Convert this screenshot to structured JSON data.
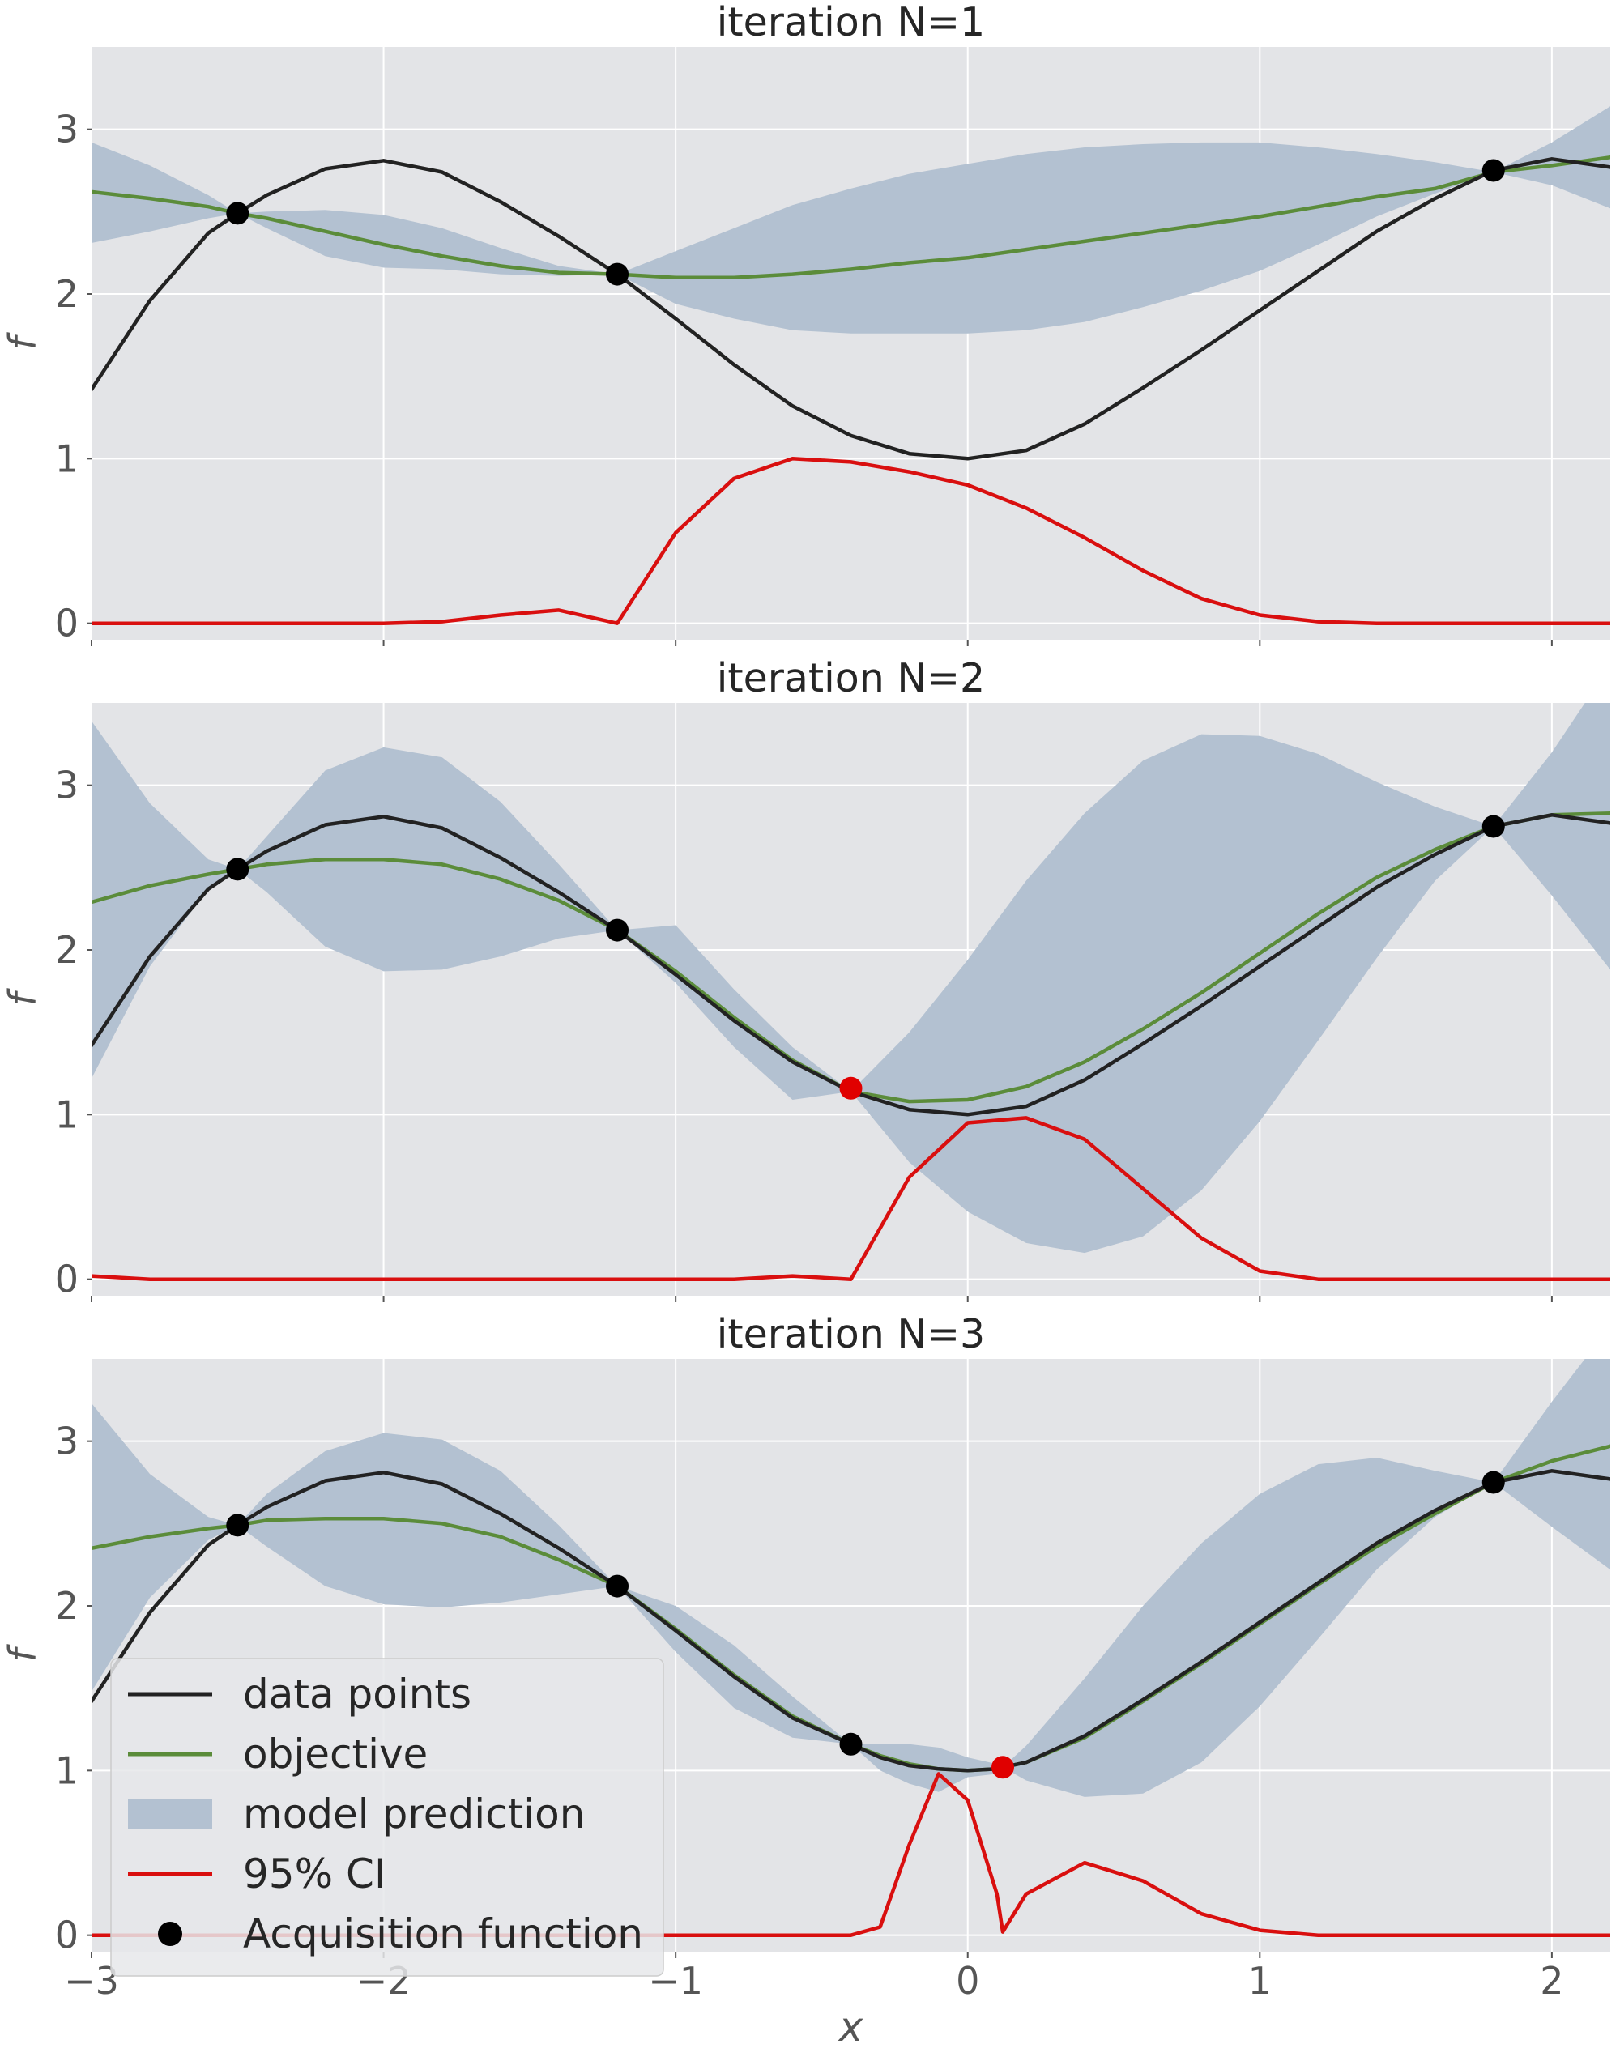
{
  "chart_data": [
    {
      "type": "line",
      "title": "iteration N=1",
      "xlabel": "",
      "ylabel": "f",
      "xlim": [
        -3,
        2.2
      ],
      "ylim": [
        -0.1,
        3.5
      ],
      "x_ticks": [
        -3,
        -2,
        -1,
        0,
        1,
        2
      ],
      "y_ticks": [
        0,
        1,
        2,
        3
      ],
      "grid": true,
      "background": "#e3e4e7",
      "colors": {
        "data_points": "#222222",
        "objective": "#5b8c3a",
        "model_prediction": "#b3c1d1",
        "ci": "#d90f0f",
        "marker": "#000000",
        "new_marker": "#e00000"
      },
      "x": [
        -3.0,
        -2.8,
        -2.6,
        -2.5,
        -2.4,
        -2.2,
        -2.0,
        -1.8,
        -1.6,
        -1.4,
        -1.2,
        -1.0,
        -0.8,
        -0.6,
        -0.4,
        -0.2,
        0.0,
        0.2,
        0.4,
        0.6,
        0.8,
        1.0,
        1.2,
        1.4,
        1.6,
        1.8,
        2.0,
        2.2
      ],
      "series": [
        {
          "name": "data points",
          "values": [
            1.42,
            1.96,
            2.37,
            2.49,
            2.6,
            2.76,
            2.81,
            2.74,
            2.56,
            2.35,
            2.12,
            1.85,
            1.57,
            1.32,
            1.14,
            1.03,
            1.0,
            1.05,
            1.21,
            1.43,
            1.66,
            1.9,
            2.14,
            2.38,
            2.58,
            2.75,
            2.82,
            2.77
          ]
        },
        {
          "name": "objective",
          "values": [
            2.62,
            2.58,
            2.53,
            2.49,
            2.46,
            2.38,
            2.3,
            2.23,
            2.17,
            2.13,
            2.12,
            2.1,
            2.1,
            2.12,
            2.15,
            2.19,
            2.22,
            2.27,
            2.32,
            2.37,
            2.42,
            2.47,
            2.53,
            2.59,
            2.64,
            2.74,
            2.78,
            2.83
          ]
        },
        {
          "name": "model prediction",
          "type": "band",
          "lower": [
            2.31,
            2.38,
            2.46,
            2.49,
            2.4,
            2.23,
            2.16,
            2.15,
            2.12,
            2.11,
            2.12,
            1.94,
            1.85,
            1.78,
            1.76,
            1.76,
            1.76,
            1.78,
            1.83,
            1.92,
            2.02,
            2.14,
            2.3,
            2.47,
            2.61,
            2.74,
            2.66,
            2.52
          ],
          "upper": [
            2.92,
            2.78,
            2.6,
            2.49,
            2.5,
            2.51,
            2.48,
            2.4,
            2.28,
            2.17,
            2.12,
            2.26,
            2.4,
            2.54,
            2.64,
            2.73,
            2.79,
            2.85,
            2.89,
            2.91,
            2.92,
            2.92,
            2.89,
            2.85,
            2.8,
            2.74,
            2.92,
            3.14
          ]
        },
        {
          "name": "95% CI",
          "values": [
            0.0,
            0.0,
            0.0,
            0.0,
            0.0,
            0.0,
            0.0,
            0.01,
            0.05,
            0.08,
            0.0,
            0.55,
            0.88,
            1.0,
            0.98,
            0.92,
            0.84,
            0.7,
            0.52,
            0.32,
            0.15,
            0.05,
            0.01,
            0.0,
            0.0,
            0.0,
            0.0,
            0.0
          ]
        }
      ],
      "observed_points": [
        {
          "x": -2.5,
          "y": 2.49
        },
        {
          "x": -1.2,
          "y": 2.12
        },
        {
          "x": 1.8,
          "y": 2.75
        }
      ],
      "new_points": []
    },
    {
      "type": "line",
      "title": "iteration N=2",
      "xlabel": "",
      "ylabel": "f",
      "xlim": [
        -3,
        2.2
      ],
      "ylim": [
        -0.1,
        3.5
      ],
      "x_ticks": [
        -3,
        -2,
        -1,
        0,
        1,
        2
      ],
      "y_ticks": [
        0,
        1,
        2,
        3
      ],
      "grid": true,
      "background": "#e3e4e7",
      "colors": {
        "data_points": "#222222",
        "objective": "#5b8c3a",
        "model_prediction": "#b3c1d1",
        "ci": "#d90f0f",
        "marker": "#000000",
        "new_marker": "#e00000"
      },
      "x": [
        -3.0,
        -2.8,
        -2.6,
        -2.5,
        -2.4,
        -2.2,
        -2.0,
        -1.8,
        -1.6,
        -1.4,
        -1.2,
        -1.0,
        -0.8,
        -0.6,
        -0.4,
        -0.2,
        0.0,
        0.2,
        0.4,
        0.6,
        0.8,
        1.0,
        1.2,
        1.4,
        1.6,
        1.8,
        2.0,
        2.2
      ],
      "series": [
        {
          "name": "data points",
          "values": [
            1.42,
            1.96,
            2.37,
            2.49,
            2.6,
            2.76,
            2.81,
            2.74,
            2.56,
            2.35,
            2.12,
            1.85,
            1.57,
            1.32,
            1.14,
            1.03,
            1.0,
            1.05,
            1.21,
            1.43,
            1.66,
            1.9,
            2.14,
            2.38,
            2.58,
            2.75,
            2.82,
            2.77
          ]
        },
        {
          "name": "objective",
          "values": [
            2.29,
            2.39,
            2.46,
            2.49,
            2.52,
            2.55,
            2.55,
            2.52,
            2.43,
            2.3,
            2.12,
            1.87,
            1.59,
            1.33,
            1.14,
            1.08,
            1.09,
            1.17,
            1.32,
            1.52,
            1.74,
            1.98,
            2.22,
            2.44,
            2.61,
            2.75,
            2.82,
            2.83
          ]
        },
        {
          "name": "model prediction",
          "type": "band",
          "lower": [
            1.22,
            1.9,
            2.37,
            2.49,
            2.35,
            2.02,
            1.87,
            1.88,
            1.96,
            2.07,
            2.12,
            1.8,
            1.41,
            1.09,
            1.14,
            0.71,
            0.41,
            0.22,
            0.16,
            0.26,
            0.54,
            0.96,
            1.45,
            1.95,
            2.42,
            2.75,
            2.33,
            1.88
          ],
          "upper": [
            3.39,
            2.89,
            2.55,
            2.49,
            2.69,
            3.09,
            3.23,
            3.17,
            2.9,
            2.52,
            2.12,
            2.15,
            1.76,
            1.41,
            1.14,
            1.5,
            1.94,
            2.42,
            2.83,
            3.15,
            3.31,
            3.3,
            3.19,
            3.02,
            2.87,
            2.75,
            3.2,
            3.73
          ]
        },
        {
          "name": "95% CI",
          "values": [
            0.02,
            0.0,
            0.0,
            0.0,
            0.0,
            0.0,
            0.0,
            0.0,
            0.0,
            0.0,
            0.0,
            0.0,
            0.0,
            0.02,
            0.0,
            0.62,
            0.95,
            0.98,
            0.85,
            0.55,
            0.25,
            0.05,
            0.0,
            0.0,
            0.0,
            0.0,
            0.0,
            0.0
          ]
        }
      ],
      "observed_points": [
        {
          "x": -2.5,
          "y": 2.49
        },
        {
          "x": -1.2,
          "y": 2.12
        },
        {
          "x": 1.8,
          "y": 2.75
        }
      ],
      "new_points": [
        {
          "x": -0.4,
          "y": 1.16
        }
      ]
    },
    {
      "type": "line",
      "title": "iteration N=3",
      "xlabel": "x",
      "ylabel": "f",
      "xlim": [
        -3,
        2.2
      ],
      "ylim": [
        -0.1,
        3.5
      ],
      "x_ticks": [
        -3,
        -2,
        -1,
        0,
        1,
        2
      ],
      "x_tick_labels": [
        "−3",
        "−2",
        "−1",
        "0",
        "1",
        "2"
      ],
      "y_ticks": [
        0,
        1,
        2,
        3
      ],
      "grid": true,
      "background": "#e3e4e7",
      "legend": {
        "position": "lower-left",
        "entries": [
          "data points",
          "objective",
          "model prediction",
          "95% CI",
          "Acquisition function"
        ]
      },
      "colors": {
        "data_points": "#222222",
        "objective": "#5b8c3a",
        "model_prediction": "#b3c1d1",
        "ci": "#d90f0f",
        "marker": "#000000",
        "new_marker": "#e00000"
      },
      "x": [
        -3.0,
        -2.8,
        -2.6,
        -2.5,
        -2.4,
        -2.2,
        -2.0,
        -1.8,
        -1.6,
        -1.4,
        -1.2,
        -1.0,
        -0.8,
        -0.6,
        -0.4,
        -0.3,
        -0.2,
        -0.1,
        0.0,
        0.1,
        0.12,
        0.2,
        0.4,
        0.6,
        0.8,
        1.0,
        1.2,
        1.4,
        1.6,
        1.8,
        2.0,
        2.2
      ],
      "series": [
        {
          "name": "data points",
          "values": [
            1.42,
            1.96,
            2.37,
            2.49,
            2.6,
            2.76,
            2.81,
            2.74,
            2.56,
            2.35,
            2.12,
            1.85,
            1.57,
            1.32,
            1.16,
            1.08,
            1.03,
            1.01,
            1.0,
            1.01,
            1.02,
            1.05,
            1.21,
            1.43,
            1.66,
            1.9,
            2.14,
            2.38,
            2.58,
            2.75,
            2.82,
            2.77
          ]
        },
        {
          "name": "objective",
          "values": [
            2.35,
            2.42,
            2.47,
            2.49,
            2.52,
            2.53,
            2.53,
            2.5,
            2.42,
            2.28,
            2.12,
            1.86,
            1.58,
            1.33,
            1.16,
            1.09,
            1.04,
            1.01,
            1.0,
            1.01,
            1.02,
            1.05,
            1.2,
            1.42,
            1.65,
            1.89,
            2.13,
            2.36,
            2.56,
            2.75,
            2.88,
            2.97
          ]
        },
        {
          "name": "model prediction",
          "type": "band",
          "lower": [
            1.48,
            2.05,
            2.4,
            2.49,
            2.36,
            2.12,
            2.01,
            1.99,
            2.02,
            2.07,
            2.12,
            1.72,
            1.38,
            1.2,
            1.16,
            1.0,
            0.92,
            0.87,
            0.96,
            0.98,
            1.02,
            0.94,
            0.84,
            0.86,
            1.05,
            1.39,
            1.8,
            2.22,
            2.54,
            2.75,
            2.48,
            2.22
          ],
          "upper": [
            3.23,
            2.8,
            2.54,
            2.49,
            2.68,
            2.94,
            3.05,
            3.01,
            2.82,
            2.49,
            2.12,
            2.0,
            1.76,
            1.45,
            1.16,
            1.16,
            1.16,
            1.14,
            1.08,
            1.04,
            1.02,
            1.15,
            1.56,
            2.0,
            2.38,
            2.68,
            2.86,
            2.9,
            2.82,
            2.75,
            3.24,
            3.7
          ]
        },
        {
          "name": "95% CI",
          "values": [
            0.0,
            0.0,
            0.0,
            0.0,
            0.0,
            0.0,
            0.0,
            0.0,
            0.0,
            0.0,
            0.0,
            0.0,
            0.0,
            0.0,
            0.0,
            0.05,
            0.55,
            0.98,
            0.82,
            0.25,
            0.02,
            0.25,
            0.44,
            0.33,
            0.13,
            0.03,
            0.0,
            0.0,
            0.0,
            0.0,
            0.0,
            0.0
          ]
        }
      ],
      "observed_points": [
        {
          "x": -2.5,
          "y": 2.49
        },
        {
          "x": -1.2,
          "y": 2.12
        },
        {
          "x": -0.4,
          "y": 1.16
        },
        {
          "x": 1.8,
          "y": 2.75
        }
      ],
      "new_points": [
        {
          "x": 0.12,
          "y": 1.02
        }
      ]
    }
  ]
}
